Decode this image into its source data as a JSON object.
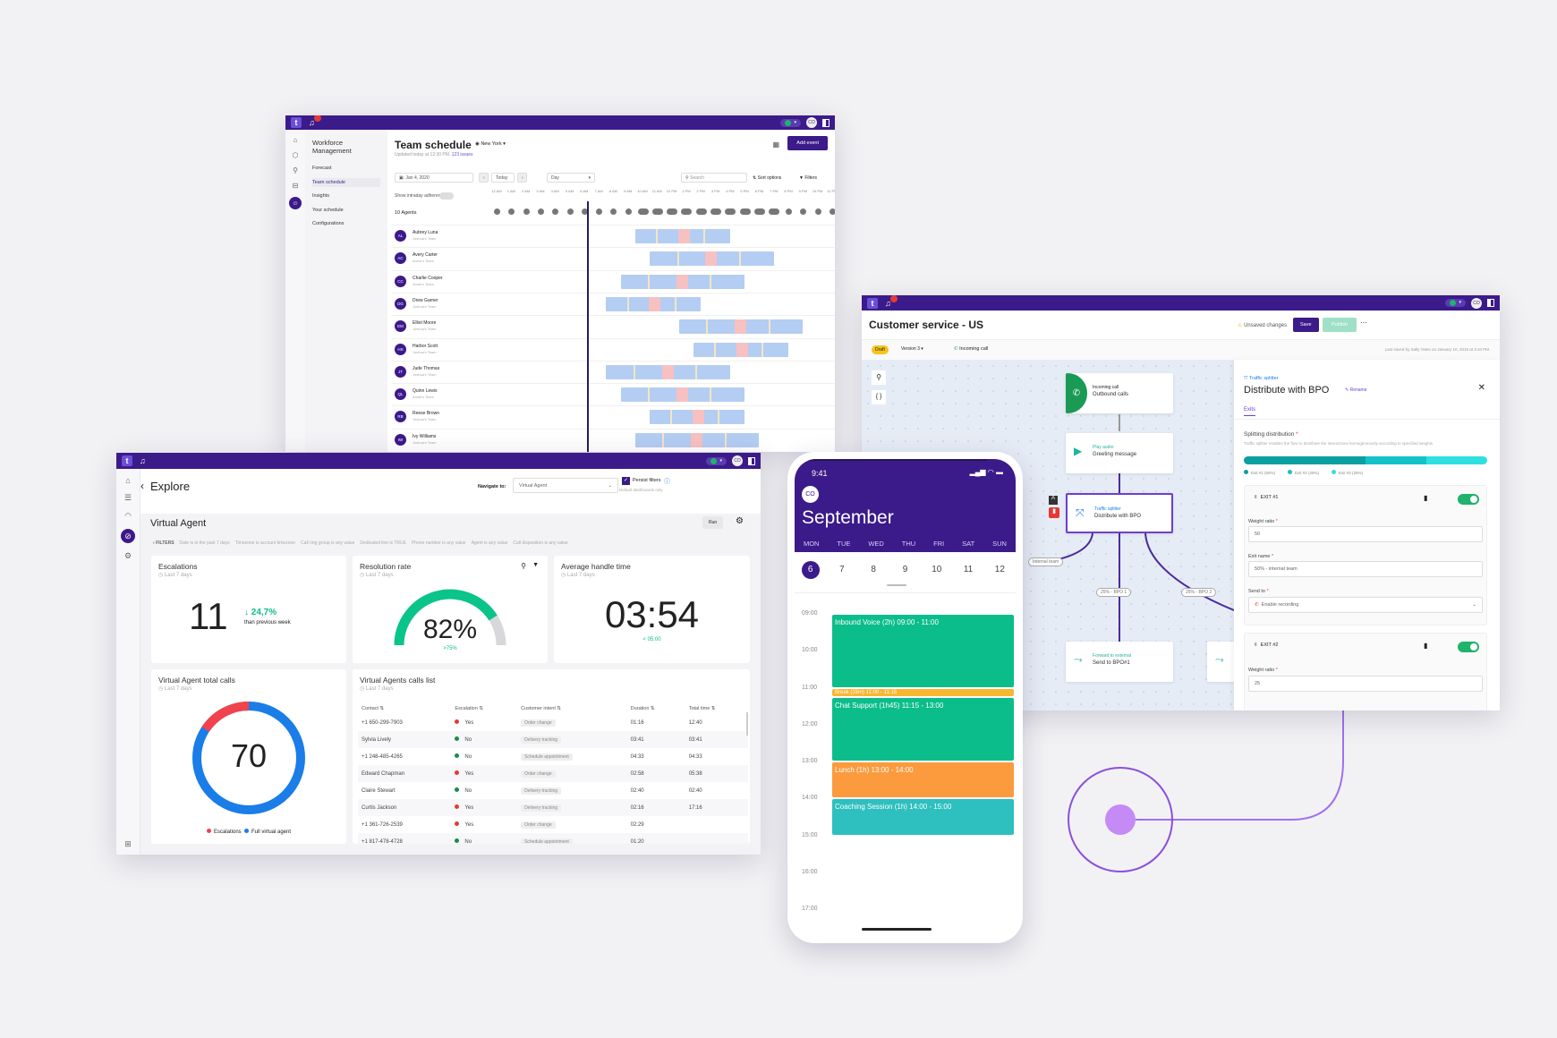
{
  "colors": {
    "brand": "#3b1a8a",
    "green": "#0bbd8a",
    "teal": "#2ebfbf",
    "orange": "#fb9b3e",
    "yellow": "#f7b731",
    "red": "#f0434b",
    "blue": "#1a7de8"
  },
  "team_schedule": {
    "nav_heading": "Workforce Management",
    "nav": [
      "Forecast",
      "Team schedule",
      "Insights",
      "Your schedule",
      "Configurations"
    ],
    "active_nav": "Team schedule",
    "title": "Team schedule",
    "timezone": "New York",
    "updated": "Updated today at 12:30 PM.",
    "issues": "123 issues",
    "add_event": "Add event",
    "date": "Jan 4, 2020",
    "today": "Today",
    "view": "Day",
    "search_placeholder": "Search",
    "sort": "Sort options",
    "filters": "Filters",
    "adherence": "Show intraday adherence",
    "agents_count": "10 Agents",
    "hours": [
      "12 AM",
      "1 AM",
      "2 AM",
      "3 AM",
      "4 AM",
      "5 AM",
      "6 AM",
      "7 AM",
      "8 AM",
      "9 AM",
      "10 AM",
      "11 AM",
      "12 PM",
      "1 PM",
      "2 PM",
      "3 PM",
      "4 PM",
      "5 PM",
      "6 PM",
      "7 PM",
      "8 PM",
      "9 PM",
      "10 PM",
      "11 PM"
    ],
    "current_hour": 6.2,
    "agents": [
      {
        "initials": "AL",
        "name": "Aubrey Luna",
        "team": "Joshua's Team",
        "start": 9.5,
        "end": 16
      },
      {
        "initials": "AC",
        "name": "Avery Carter",
        "team": "Annie's Team",
        "start": 10.5,
        "end": 19
      },
      {
        "initials": "CC",
        "name": "Charlie Cooper",
        "team": "Annie's Team",
        "start": 8.5,
        "end": 17
      },
      {
        "initials": "DG",
        "name": "Drew Garner",
        "team": "Joshua's Team",
        "start": 7.5,
        "end": 14
      },
      {
        "initials": "EM",
        "name": "Elliot Moore",
        "team": "Joshua's Team",
        "start": 12.5,
        "end": 21
      },
      {
        "initials": "HS",
        "name": "Harbor Scott",
        "team": "Joshua's Team",
        "start": 13.5,
        "end": 20
      },
      {
        "initials": "JT",
        "name": "Jude Thomas",
        "team": "Joshua's Team",
        "start": 7.5,
        "end": 16
      },
      {
        "initials": "QL",
        "name": "Quinn Lewis",
        "team": "Annie's Team",
        "start": 8.5,
        "end": 17
      },
      {
        "initials": "RB",
        "name": "Reese Brown",
        "team": "Joshua's Team",
        "start": 10.5,
        "end": 17
      },
      {
        "initials": "IW",
        "name": "Ivy Williams",
        "team": "Joshua's Team",
        "start": 9.5,
        "end": 18
      }
    ]
  },
  "explore": {
    "back": "‹",
    "title": "Explore",
    "navigate_label": "Navigate to:",
    "navigate_value": "Virtual Agent",
    "persist_filters": "Persist filters",
    "persist_note": "Default dashboards only",
    "dashboard": "Virtual Agent",
    "run": "Run",
    "filters_label": "FILTERS",
    "filters": [
      "Date is in the past 7 days",
      "Timezone is account timezone",
      "Call ring group is any value",
      "Dedicated line is TRUE",
      "Phone number is any value",
      "Agent is any value",
      "Call disposition is any value"
    ],
    "escalations": {
      "title": "Escalations",
      "period": "Last 7 days",
      "value": "11",
      "delta": "24,7%",
      "delta_note": "than previous week"
    },
    "resolution": {
      "title": "Resolution rate",
      "period": "Last 7 days",
      "value": "82%",
      "percent": 82,
      "target": ">75%"
    },
    "aht": {
      "title": "Average handle time",
      "period": "Last 7 days",
      "value": "03:54",
      "target": "< 05:00"
    },
    "total_calls": {
      "title": "Virtual Agent total calls",
      "period": "Last 7 days",
      "value": "70",
      "escalations": 11,
      "total": 70,
      "legend": [
        "Escalations",
        "Full virtual agent"
      ]
    },
    "calls_list": {
      "title": "Virtual Agents calls list",
      "period": "Last 7 days",
      "columns": [
        "Contact",
        "Escalation",
        "Customer intent",
        "Duration",
        "Total time"
      ],
      "rows": [
        [
          "+1 650-299-7903",
          "Yes",
          "Order change",
          "01:16",
          "12:40"
        ],
        [
          "Sylvia Lively",
          "No",
          "Delivery tracking",
          "03:41",
          "03:41"
        ],
        [
          "+1 248-485-4265",
          "No",
          "Schedule appointment",
          "04:33",
          "04:33"
        ],
        [
          "Edward Chapman",
          "Yes",
          "Order change",
          "02:58",
          "05:38"
        ],
        [
          "Claire Stewart",
          "No",
          "Delivery tracking",
          "02:40",
          "02:40"
        ],
        [
          "Curtis Jackson",
          "Yes",
          "Delivery tracking",
          "02:16",
          "17:16"
        ],
        [
          "+1 361-726-2539",
          "Yes",
          "Order change",
          "02:29",
          ""
        ],
        [
          "+1 817-478-4728",
          "No",
          "Schedule appointment",
          "01:20",
          ""
        ]
      ]
    }
  },
  "customer_service": {
    "title": "Customer service - US",
    "unsaved": "Unsaved changes",
    "save": "Save",
    "publish": "Publish",
    "draft": "Draft",
    "version": "Version 3",
    "trigger": "Incoming call",
    "last_saved": "Last saved by Sally Yates on January 10, 2019 at 3:10 PM",
    "nodes": [
      {
        "kind": "Incoming call",
        "label": "Outbound calls"
      },
      {
        "kind": "Play audio",
        "label": "Greeting message"
      },
      {
        "kind": "Traffic splitter",
        "label": "Distribute with BPO"
      },
      {
        "kind": "Forward to external",
        "label": "Send to BPO#1"
      }
    ],
    "edges": [
      "Internal team",
      "25% - BPO 1",
      "25% - BPO 2"
    ],
    "panel": {
      "kind": "Traffic splitter",
      "title": "Distribute with BPO",
      "rename": "Rename",
      "tab": "Exits",
      "section": "Splitting distribution",
      "description": "Traffic splitter enables the flow to distribute the interactions homogeneously according to specified weights",
      "distribution": [
        {
          "label": "Exit #1 (50%)",
          "value": 50,
          "color": "#0a9fa0"
        },
        {
          "label": "Exit #2 (25%)",
          "value": 25,
          "color": "#14c3c9"
        },
        {
          "label": "Exit #3 (25%)",
          "value": 25,
          "color": "#2ee0e0"
        }
      ],
      "exit1": {
        "label": "EXIT #1",
        "weight_label": "Weight ratio",
        "weight": "50",
        "name_label": "Exit name",
        "name": "50% - internal team",
        "send_label": "Send to",
        "send": "Enable recording",
        "enabled": true
      },
      "exit2": {
        "label": "EXIT #2",
        "weight_label": "Weight ratio",
        "weight": "25",
        "enabled": true
      }
    }
  },
  "phone": {
    "time": "9:41",
    "avatar": "CO",
    "month": "September",
    "weekdays": [
      "MON",
      "TUE",
      "WED",
      "THU",
      "FRI",
      "SAT",
      "SUN"
    ],
    "dates": [
      "6",
      "7",
      "8",
      "9",
      "10",
      "11",
      "12"
    ],
    "selected": "6",
    "hours": [
      "09:00",
      "10:00",
      "11:00",
      "12:00",
      "13:00",
      "14:00",
      "15:00",
      "16:00",
      "17:00"
    ],
    "now": 9.8,
    "events": [
      {
        "label": "Inbound Voice (2h) 09:00 - 11:00",
        "start": 9,
        "end": 11,
        "color": "#0bbd8a"
      },
      {
        "label": "Break (15m) 11:00 - 11:15",
        "start": 11,
        "end": 11.25,
        "color": "#f7b731"
      },
      {
        "label": "Chat Support (1h45) 11:15 - 13:00",
        "start": 11.25,
        "end": 13,
        "color": "#0bbd8a"
      },
      {
        "label": "Lunch (1h) 13:00 - 14:00",
        "start": 13,
        "end": 14,
        "color": "#fb9b3e"
      },
      {
        "label": "Coaching Session (1h) 14:00 - 15:00",
        "start": 14,
        "end": 15,
        "color": "#2ebfbf"
      }
    ]
  }
}
